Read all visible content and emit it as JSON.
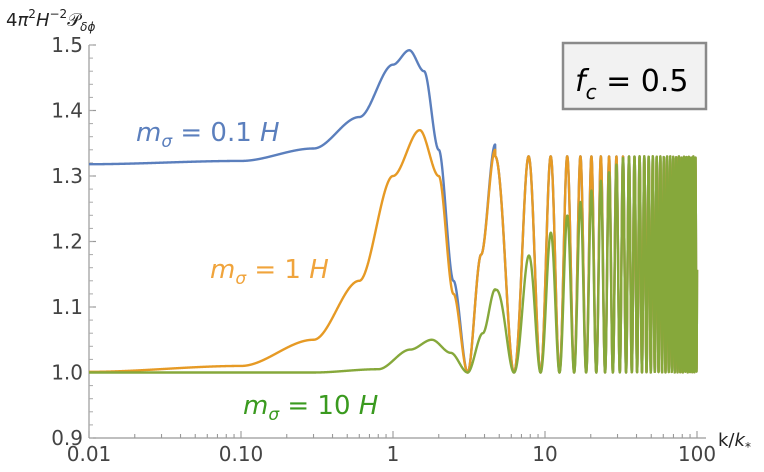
{
  "chart_data": {
    "type": "line",
    "ylabel_parts": {
      "pre": "4",
      "pi": "π",
      "pi_sup": "2",
      "H": "H",
      "h_sup": "−2",
      "P": "𝒫",
      "P_sub": "δϕ"
    },
    "xlabel_parts": {
      "k": "k/",
      "kk": "k",
      "sub": "*"
    },
    "x_scale": "log",
    "xlim": [
      0.01,
      100
    ],
    "ylim": [
      0.9,
      1.5
    ],
    "xticks": [
      {
        "value": 0.01,
        "label": "0.01"
      },
      {
        "value": 0.1,
        "label": "0.10"
      },
      {
        "value": 1,
        "label": "1"
      },
      {
        "value": 10,
        "label": "10"
      },
      {
        "value": 100,
        "label": "100"
      }
    ],
    "yticks": [
      {
        "value": 0.9,
        "label": "0.9"
      },
      {
        "value": 1.0,
        "label": "1.0"
      },
      {
        "value": 1.1,
        "label": "1.1"
      },
      {
        "value": 1.2,
        "label": "1.2"
      },
      {
        "value": 1.3,
        "label": "1.3"
      },
      {
        "value": 1.4,
        "label": "1.4"
      },
      {
        "value": 1.5,
        "label": "1.5"
      }
    ],
    "grid": false,
    "annotation_box": {
      "f": "f",
      "sub": "c",
      "rest": " = 0.5"
    },
    "series": [
      {
        "name": "mσ = 0.1 H",
        "label_parts": {
          "m": "m",
          "sub": "σ",
          "rest": " = 0.1 ",
          "H": "H"
        },
        "color": "#5b7fbd",
        "flat": 1.318,
        "peak_k": 1.28,
        "peak": 1.492,
        "dip": 1.0,
        "osc_max": 1.33,
        "points": [
          [
            0.01,
            1.318
          ],
          [
            0.1,
            1.323
          ],
          [
            0.3,
            1.342
          ],
          [
            0.6,
            1.39
          ],
          [
            1.0,
            1.47
          ],
          [
            1.28,
            1.492
          ],
          [
            1.6,
            1.46
          ],
          [
            2.0,
            1.34
          ],
          [
            2.5,
            1.14
          ],
          [
            3.1,
            1.0
          ],
          [
            3.8,
            1.18
          ],
          [
            4.7,
            1.348
          ]
        ]
      },
      {
        "name": "mσ = 1 H",
        "label_parts": {
          "m": "m",
          "sub": "σ",
          "rest": " = 1 ",
          "H": "H"
        },
        "color": "#e69a25",
        "flat": 1.0,
        "peak_k": 1.5,
        "peak": 1.37,
        "dip": 1.0,
        "osc_max": 1.33,
        "points": [
          [
            0.01,
            1.001
          ],
          [
            0.1,
            1.01
          ],
          [
            0.3,
            1.05
          ],
          [
            0.6,
            1.14
          ],
          [
            1.0,
            1.3
          ],
          [
            1.5,
            1.37
          ],
          [
            2.0,
            1.3
          ],
          [
            2.5,
            1.12
          ],
          [
            3.1,
            1.0
          ],
          [
            3.8,
            1.18
          ],
          [
            4.7,
            1.34
          ]
        ]
      },
      {
        "name": "mσ = 10 H",
        "label_parts": {
          "m": "m",
          "sub": "σ",
          "rest": " = 10 ",
          "H": "H"
        },
        "color": "#86a83b",
        "flat": 1.0,
        "peak_k": 1.8,
        "peak": 1.05,
        "dip": 1.0,
        "osc_max": 1.33,
        "points": [
          [
            0.01,
            1.0
          ],
          [
            0.3,
            1.0
          ],
          [
            0.8,
            1.005
          ],
          [
            1.3,
            1.035
          ],
          [
            1.8,
            1.05
          ],
          [
            2.4,
            1.03
          ],
          [
            3.1,
            1.0
          ],
          [
            3.9,
            1.06
          ],
          [
            4.7,
            1.127
          ]
        ]
      }
    ]
  },
  "colors": {
    "label_blue": "#5b7fbd",
    "label_orange": "#f0a43c",
    "label_green": "#3a9a1f"
  }
}
